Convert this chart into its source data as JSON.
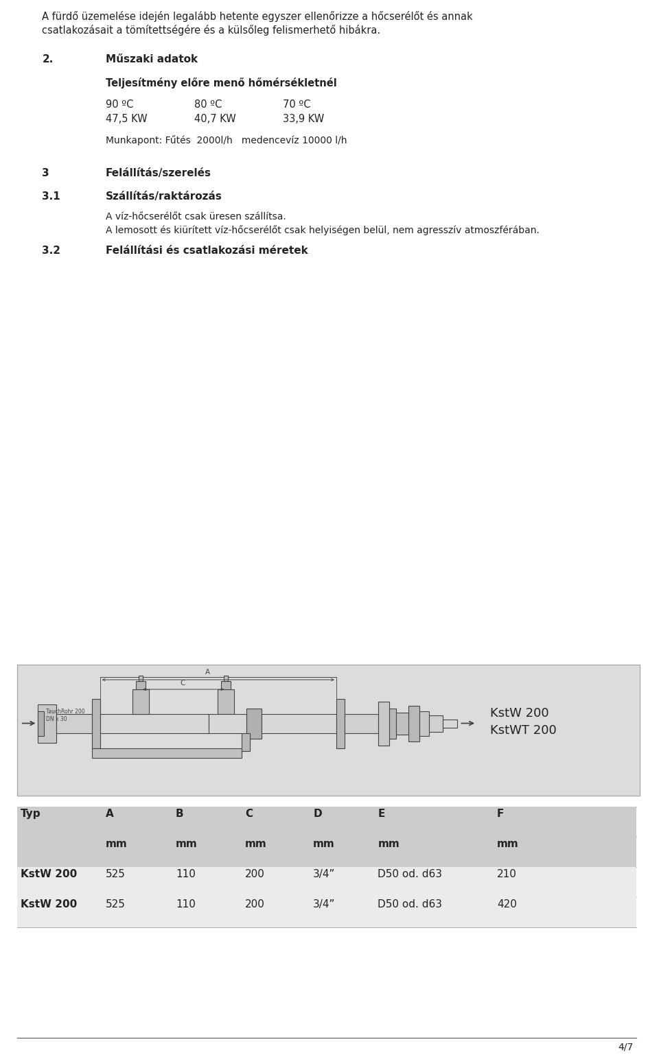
{
  "bg_color": "#ffffff",
  "text_color": "#222222",
  "intro_text_line1": "A fürdő üzemelése idején legalább hetente egyszer ellenőrizze a hőcserélőt és annak",
  "intro_text_line2": "csatlakozásait a tömítettségére és a külsőleg felismerhető hibákra.",
  "section2_number": "2.",
  "section2_title": "Műszaki adatok",
  "section2_subtitle": "Teljesítmény előre menő hőmérsékletnél",
  "temp_labels": [
    "90 ºC",
    "80 ºC",
    "70 ºC"
  ],
  "kw_labels": [
    "47,5 KW",
    "40,7 KW",
    "33,9 KW"
  ],
  "munkapont_line": "Munkapont: Fűtés  2000l/h   medencevíz 10000 l/h",
  "section3_number": "3",
  "section3_title": "Felállítás/szerelés",
  "section31_number": "3.1",
  "section31_title": "Szállítás/raktározás",
  "section31_text1": "A víz-hőcserélőt csak üresen szállítsa.",
  "section31_text2": "A lemosott és kiürített víz-hőcserélőt csak helyiségen belül, nem agresszív atmoszférában.",
  "section32_number": "3.2",
  "section32_title": "Felállítási és csatlakozási méretek",
  "diagram_label1": "KstW 200",
  "diagram_label2": "KstWT 200",
  "table_headers": [
    "Typ",
    "A",
    "B",
    "C",
    "D",
    "E",
    "F"
  ],
  "table_units": [
    "",
    "mm",
    "mm",
    "mm",
    "mm",
    "mm",
    "mm"
  ],
  "table_rows": [
    [
      "KstW 200",
      "525",
      "110",
      "200",
      "3/4”",
      "D50 od. d63",
      "210"
    ],
    [
      "KstW 200",
      "525",
      "110",
      "200",
      "3/4”",
      "D50 od. d63",
      "420"
    ]
  ],
  "table_bg": "#cccccc",
  "table_row_bg": "#ebebeb",
  "footer_text": "4/7",
  "lc": "#444444",
  "diagram_bg": "#dcdcdc"
}
